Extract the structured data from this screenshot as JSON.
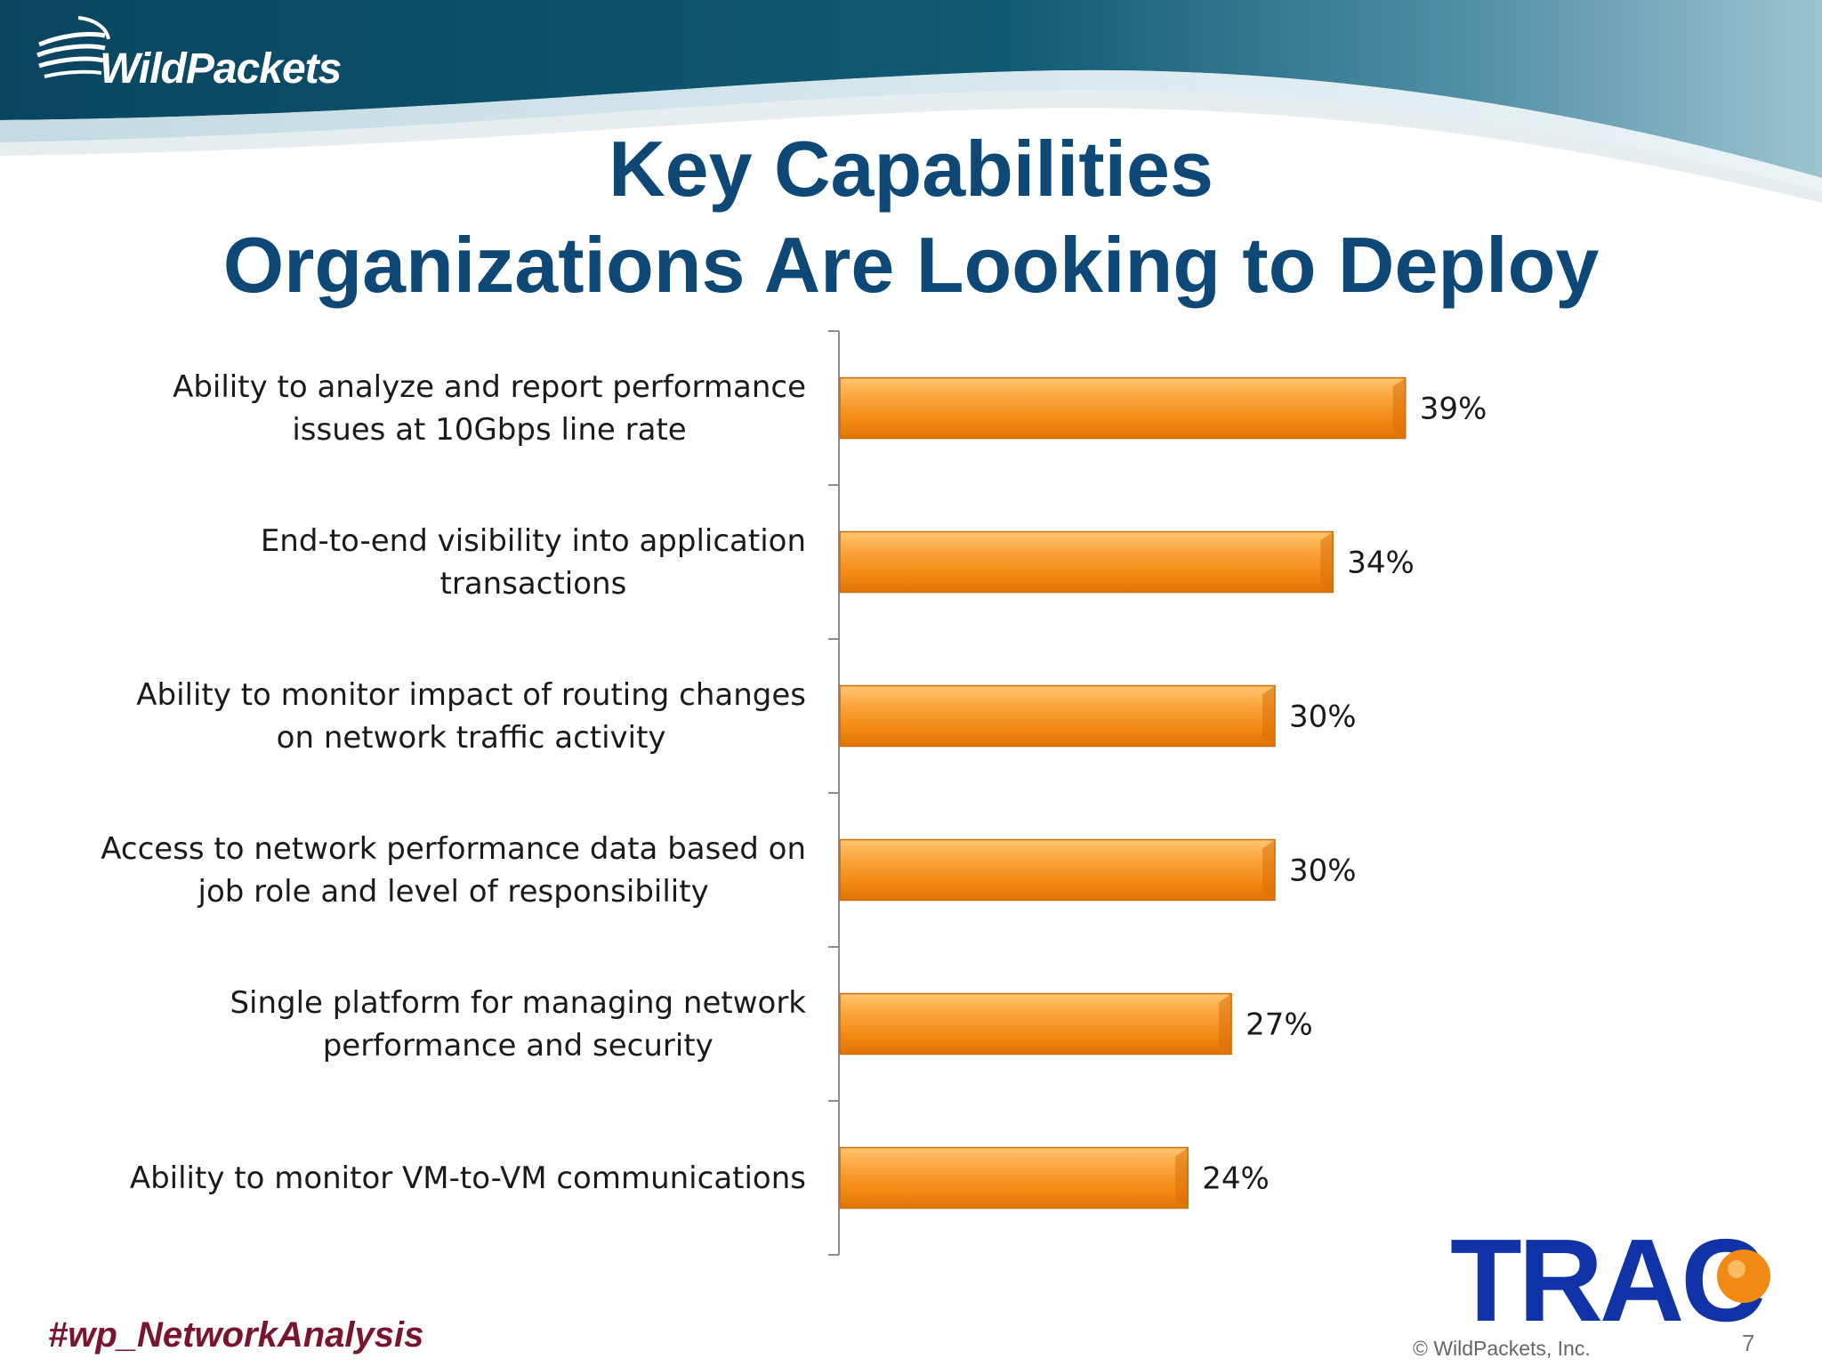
{
  "header": {
    "brand": "WildPackets",
    "title_line1": "Key Capabilities",
    "title_line2": "Organizations Are Looking to Deploy"
  },
  "colors": {
    "title": "#0d4876",
    "bar_light": "#ffbf66",
    "bar_mid": "#f7941d",
    "bar_dark": "#e0780a",
    "band_dark": "#0b4a63",
    "band_light": "#7fb3c4",
    "trac_blue": "#1033a8",
    "trac_orange": "#f08a14"
  },
  "chart_data": {
    "type": "bar",
    "orientation": "horizontal",
    "categories": [
      [
        "Ability to analyze and report performance",
        "issues at 10Gbps line rate"
      ],
      [
        "End-to-end visibility into application",
        "transactions"
      ],
      [
        "Ability to monitor impact of routing changes",
        "on network traffic activity"
      ],
      [
        "Access to network performance data based on",
        "job role and level of responsibility"
      ],
      [
        "Single platform for managing network",
        "performance and security"
      ],
      [
        "Ability to monitor VM-to-VM communications"
      ]
    ],
    "values": [
      39,
      34,
      30,
      30,
      27,
      24
    ],
    "value_labels": [
      "39%",
      "34%",
      "30%",
      "30%",
      "27%",
      "24%"
    ],
    "xlim": [
      0,
      100
    ],
    "grid": false,
    "legend": "none"
  },
  "footer": {
    "hashtag": "#wp_NetworkAnalysis",
    "partner_logo_text": "TRAC",
    "copyright": "© WildPackets, Inc.",
    "page_number": "7"
  }
}
